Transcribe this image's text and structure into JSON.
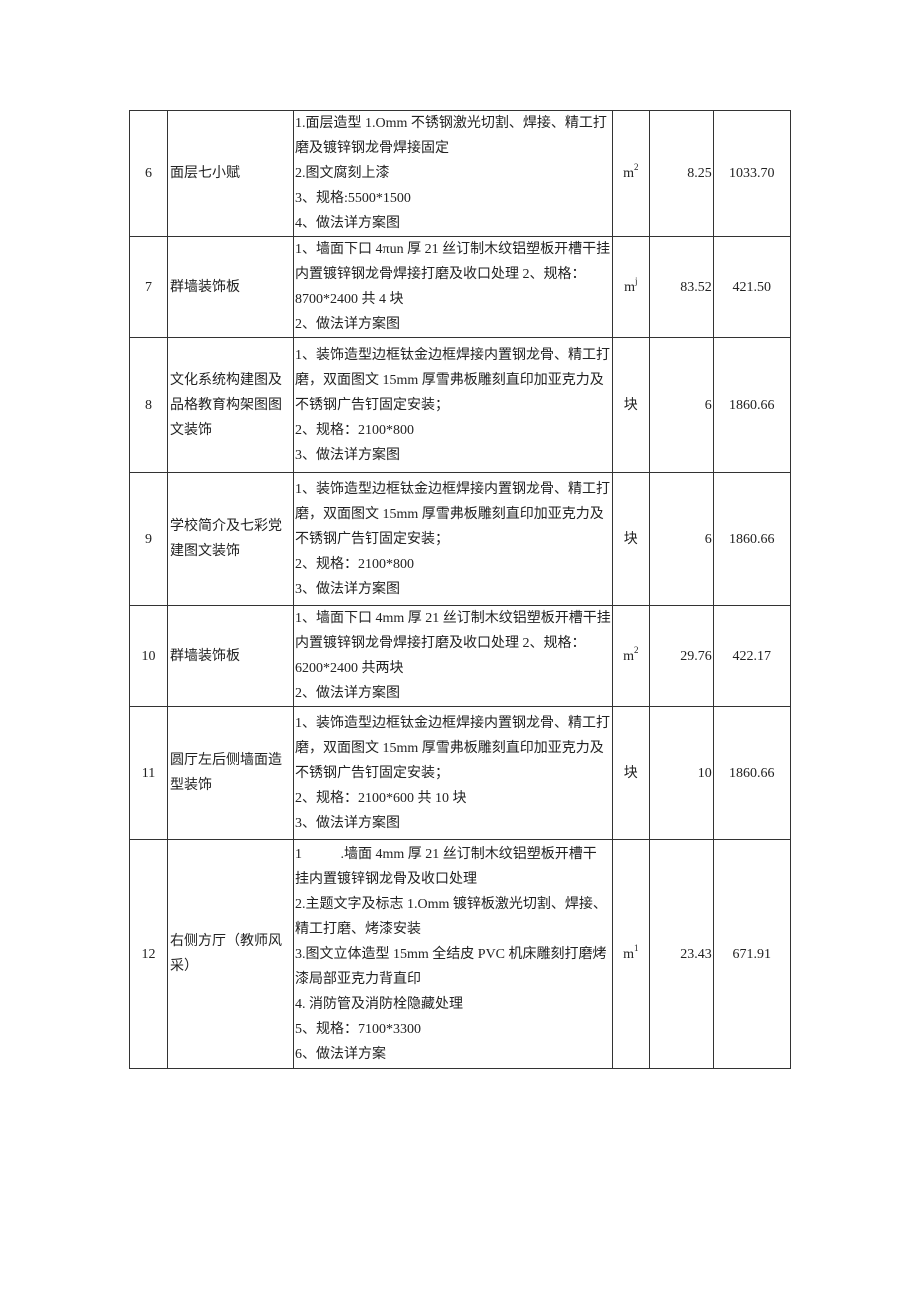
{
  "rows": [
    {
      "num": "6",
      "name": "面层七小赋",
      "desc": [
        "1.面层造型 1.Omm 不锈钢激光切割、焊接、精工打",
        "磨及镀锌钢龙骨焊接固定",
        "2.图文腐刻上漆",
        "3、规格:5500*1500",
        "4、做法详方案图"
      ],
      "unit": "m",
      "unit_sup": "2",
      "qty": "8.25",
      "price": "1033.70"
    },
    {
      "num": "7",
      "name": "群墙装饰板",
      "desc": [
        "1、墙面下口 4πun 厚 21 丝订制木纹铝塑板开槽干挂",
        "内置镀锌钢龙骨焊接打磨及收口处理 2、规格：",
        "8700*2400 共 4 块",
        "2、做法详方案图"
      ],
      "unit": "m",
      "unit_sup": "j",
      "qty": "83.52",
      "price": "421.50"
    },
    {
      "num": "8",
      "name": "文化系统构建图及品格教育构架图图文装饰",
      "desc": [
        "1、装饰造型边框钛金边框焊接内置钢龙骨、精工打",
        "磨，双面图文 15mm 厚雪弗板雕刻直印加亚克力及",
        "不锈钢广告钉固定安装；",
        "2、规格：2100*800",
        "3、做法详方案图"
      ],
      "unit": "块",
      "unit_sup": "",
      "qty": "6",
      "price": "1860.66"
    },
    {
      "num": "9",
      "name": "学校简介及七彩党建图文装饰",
      "desc": [
        "1、装饰造型边框钛金边框焊接内置钢龙骨、精工打",
        "磨，双面图文 15mm 厚雪弗板雕刻直印加亚克力及",
        "不锈钢广告钉固定安装；",
        "2、规格：2100*800",
        "3、做法详方案图"
      ],
      "unit": "块",
      "unit_sup": "",
      "qty": "6",
      "price": "1860.66"
    },
    {
      "num": "10",
      "name": "群墙装饰板",
      "desc": [
        "1、墙面下口 4mm 厚 21 丝订制木纹铝塑板开槽干挂",
        "内置镀锌钢龙骨焊接打磨及收口处理 2、规格：",
        "6200*2400 共两块",
        "2、做法详方案图"
      ],
      "unit": "m",
      "unit_sup": "2",
      "qty": "29.76",
      "price": "422.17"
    },
    {
      "num": "11",
      "name": "圆厅左后侧墙面造型装饰",
      "desc": [
        "1、装饰造型边框钛金边框焊接内置钢龙骨、精工打",
        "磨，双面图文 15mm 厚雪弗板雕刻直印加亚克力及",
        "不锈钢广告钉固定安装；",
        "2、规格：2100*600 共 10 块",
        "3、做法详方案图"
      ],
      "unit": "块",
      "unit_sup": "",
      "qty": "10",
      "price": "1860.66"
    },
    {
      "num": "12",
      "name": "右侧方厅（教师风采）",
      "desc": [
        "1           .墙面 4mm 厚 21 丝订制木纹铝塑板开槽干",
        "挂内置镀锌钢龙骨及收口处理",
        "2.主题文字及标志 1.Omm 镀锌板激光切割、焊接、",
        "精工打磨、烤漆安装",
        "3.图文立体造型 15mm 全结皮 PVC 机床雕刻打磨烤",
        "漆局部亚克力背直印",
        "4. 消防管及消防栓隐藏处理",
        "5、规格：7100*3300",
        "6、做法详方案"
      ],
      "unit": "m",
      "unit_sup": "1",
      "qty": "23.43",
      "price": "671.91"
    }
  ]
}
